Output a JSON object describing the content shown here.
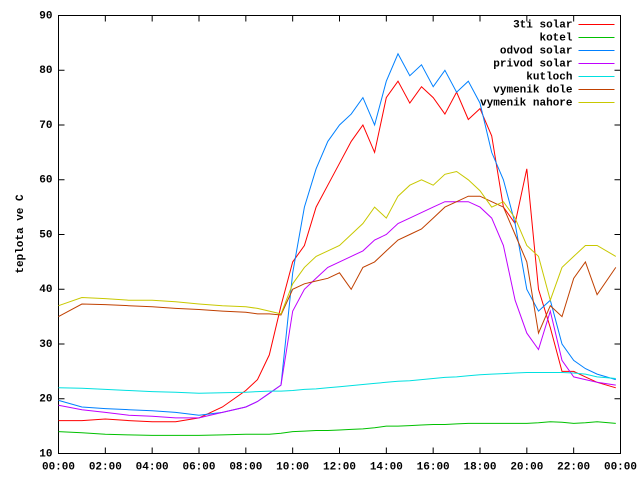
{
  "chart_data": {
    "type": "line",
    "ylabel": "teplota ve C",
    "x": [
      0,
      1,
      2,
      3,
      4,
      5,
      6,
      7,
      8,
      8.5,
      9,
      9.5,
      10,
      10.5,
      11,
      11.5,
      12,
      12.5,
      13,
      13.5,
      14,
      14.5,
      15,
      15.5,
      16,
      16.5,
      17,
      17.5,
      18,
      18.5,
      19,
      19.5,
      20,
      20.5,
      21,
      21.5,
      22,
      22.5,
      23,
      23.8
    ],
    "xlim": [
      0,
      24
    ],
    "xticks": [
      {
        "value": 0,
        "label": "00:00"
      },
      {
        "value": 2,
        "label": "02:00"
      },
      {
        "value": 4,
        "label": "04:00"
      },
      {
        "value": 6,
        "label": "06:00"
      },
      {
        "value": 8,
        "label": "08:00"
      },
      {
        "value": 10,
        "label": "10:00"
      },
      {
        "value": 12,
        "label": "12:00"
      },
      {
        "value": 14,
        "label": "14:00"
      },
      {
        "value": 16,
        "label": "16:00"
      },
      {
        "value": 18,
        "label": "18:00"
      },
      {
        "value": 20,
        "label": "20:00"
      },
      {
        "value": 22,
        "label": "22:00"
      },
      {
        "value": 24,
        "label": "00:00"
      }
    ],
    "ylim": [
      10,
      90
    ],
    "yticks": [
      10,
      20,
      30,
      40,
      50,
      60,
      70,
      80,
      90
    ],
    "legend": "top right",
    "series": [
      {
        "name": "3ti solar",
        "color": "#ff0000",
        "values": [
          16,
          16,
          16.3,
          16,
          15.8,
          15.8,
          16.5,
          18.5,
          21.5,
          23.5,
          28,
          37,
          45,
          48,
          55,
          59,
          63,
          67,
          70,
          65,
          75,
          78,
          74,
          77,
          75,
          72,
          76,
          71,
          73,
          68,
          55,
          52,
          62,
          40,
          33,
          25,
          25,
          24,
          23,
          22
        ]
      },
      {
        "name": "kotel",
        "color": "#00c000",
        "values": [
          14,
          13.8,
          13.5,
          13.4,
          13.3,
          13.3,
          13.3,
          13.4,
          13.5,
          13.5,
          13.5,
          13.7,
          14,
          14.1,
          14.2,
          14.2,
          14.3,
          14.4,
          14.5,
          14.7,
          15,
          15,
          15.1,
          15.2,
          15.3,
          15.3,
          15.4,
          15.5,
          15.5,
          15.5,
          15.5,
          15.5,
          15.5,
          15.6,
          15.8,
          15.7,
          15.5,
          15.6,
          15.8,
          15.5
        ]
      },
      {
        "name": "odvod solar",
        "color": "#0080ff",
        "values": [
          19.7,
          18.5,
          18.2,
          18,
          17.8,
          17.5,
          17,
          17.5,
          18.5,
          19.5,
          21,
          22.5,
          43,
          55,
          62,
          67,
          70,
          72,
          75,
          70,
          78,
          83,
          79,
          81,
          77,
          80,
          76,
          78,
          74,
          65,
          60,
          52,
          40,
          36,
          38,
          30,
          27,
          25.5,
          24.5,
          23.5
        ]
      },
      {
        "name": "privod solar",
        "color": "#c000ff",
        "values": [
          18.8,
          18,
          17.5,
          17,
          16.8,
          16.5,
          16.5,
          17.5,
          18.5,
          19.5,
          21,
          22.5,
          36,
          40,
          42,
          44,
          45,
          46,
          47,
          49,
          50,
          52,
          53,
          54,
          55,
          56,
          56,
          56,
          55,
          53,
          48,
          38,
          32,
          29,
          36,
          27,
          24,
          23.5,
          23,
          22.5
        ]
      },
      {
        "name": "kutloch",
        "color": "#00e0e0",
        "values": [
          22,
          21.9,
          21.7,
          21.5,
          21.3,
          21.2,
          21,
          21.1,
          21.2,
          21.3,
          21.4,
          21.4,
          21.5,
          21.7,
          21.8,
          22,
          22.2,
          22.4,
          22.6,
          22.8,
          23,
          23.2,
          23.3,
          23.5,
          23.7,
          23.9,
          24,
          24.2,
          24.4,
          24.5,
          24.6,
          24.7,
          24.8,
          24.8,
          24.8,
          24.8,
          24.7,
          24.5,
          24,
          23.7
        ]
      },
      {
        "name": "vymenik dole",
        "color": "#c04000",
        "values": [
          35,
          37.3,
          37.2,
          37,
          36.8,
          36.5,
          36.3,
          36,
          35.8,
          35.5,
          35.5,
          35.3,
          40,
          41,
          41.5,
          42,
          43,
          40,
          44,
          45,
          47,
          49,
          50,
          51,
          53,
          55,
          56,
          57,
          57,
          56,
          55,
          50,
          45,
          32,
          37,
          35,
          42,
          45,
          39,
          44
        ]
      },
      {
        "name": "vymenik nahore",
        "color": "#c8c800",
        "values": [
          37,
          38.5,
          38.3,
          38,
          38,
          37.7,
          37.3,
          37,
          36.8,
          36.5,
          36,
          35.5,
          41,
          44,
          46,
          47,
          48,
          50,
          52,
          55,
          53,
          57,
          59,
          60,
          59,
          61,
          61.5,
          60,
          58,
          55,
          56,
          53,
          48,
          46,
          38,
          44,
          46,
          48,
          48,
          46
        ]
      }
    ]
  }
}
